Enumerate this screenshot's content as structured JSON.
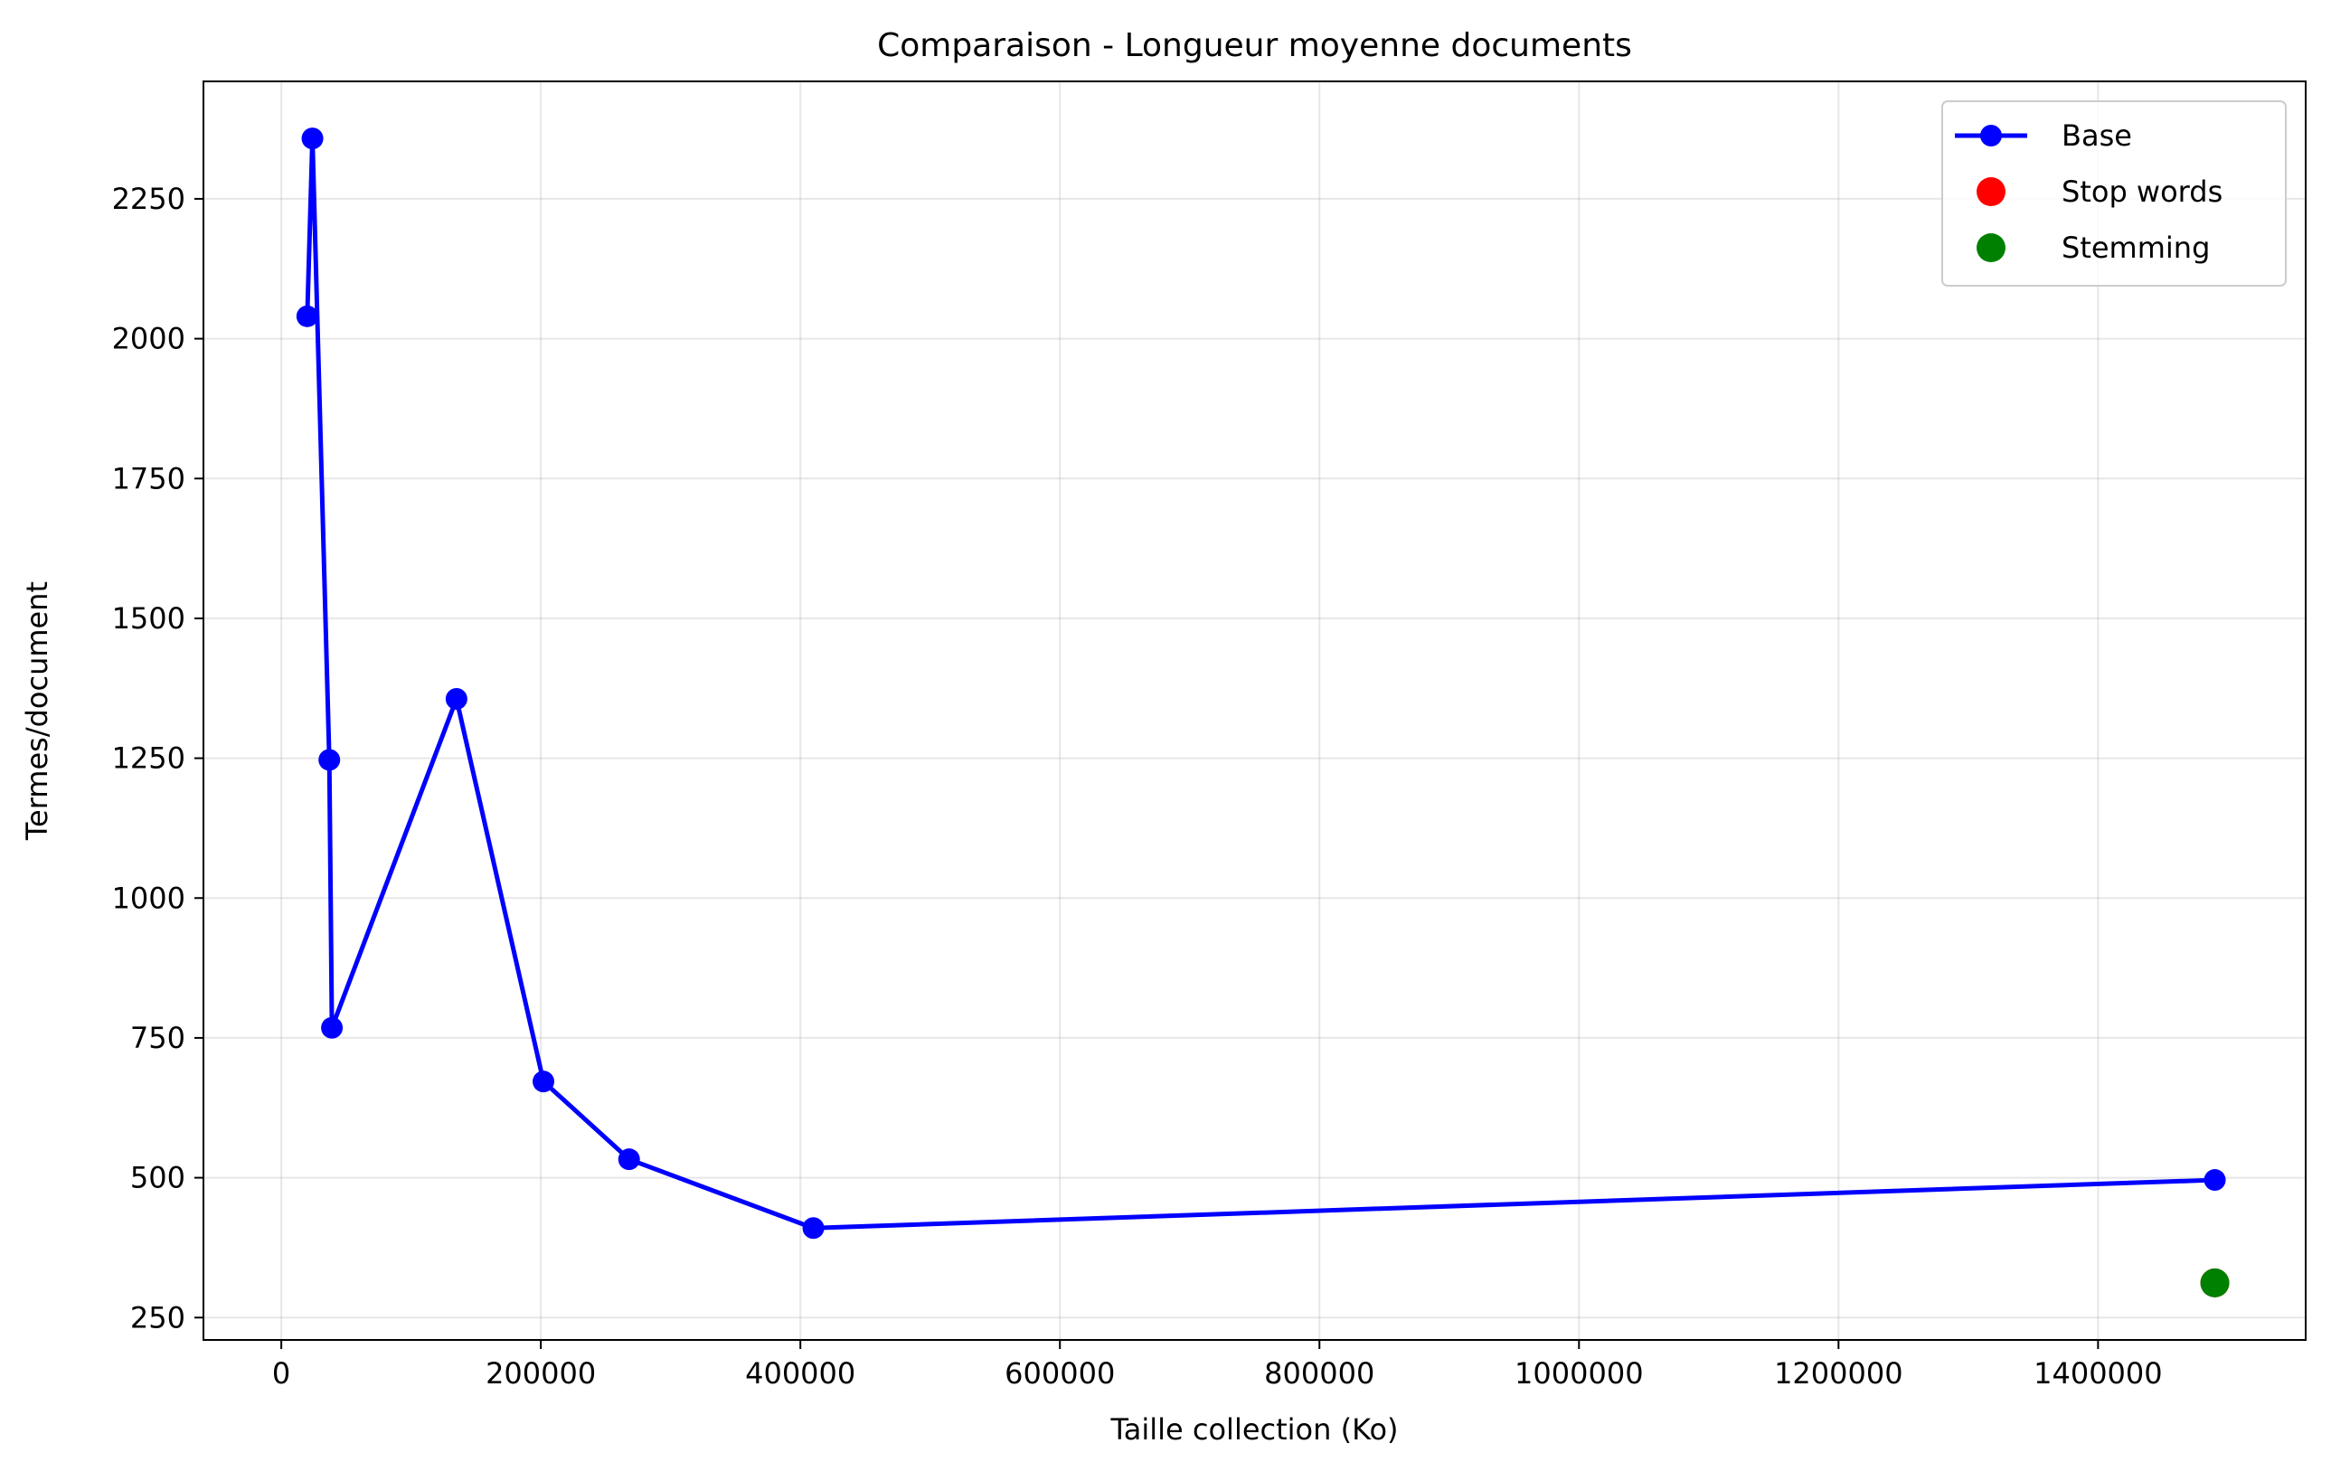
{
  "chart_data": {
    "type": "line",
    "title": "Comparaison - Longueur moyenne documents",
    "xlabel": "Taille collection (Ko)",
    "ylabel": "Termes/document",
    "xlim": [
      -60000,
      1560000
    ],
    "ylim": [
      210,
      2460
    ],
    "xticks": [
      0,
      200000,
      400000,
      600000,
      800000,
      1000000,
      1200000,
      1400000
    ],
    "xtick_labels": [
      "0",
      "200000",
      "400000",
      "600000",
      "800000",
      "1000000",
      "1200000",
      "1400000"
    ],
    "yticks": [
      250,
      500,
      750,
      1000,
      1250,
      1500,
      1750,
      2000,
      2250
    ],
    "ytick_labels": [
      "250",
      "500",
      "750",
      "1000",
      "1250",
      "1500",
      "1750",
      "2000",
      "2250"
    ],
    "grid": true,
    "legend_position": "top-right",
    "series": [
      {
        "name": "Base",
        "color": "#0000ff",
        "style": "line-marker",
        "x": [
          20000,
          24000,
          37000,
          39000,
          135000,
          202000,
          268000,
          410000,
          1490000
        ],
        "y": [
          2040,
          2358,
          1247,
          768,
          1356,
          672,
          533,
          410,
          496
        ]
      },
      {
        "name": "Stop words",
        "color": "#ff0000",
        "style": "marker",
        "x": [
          1490000
        ],
        "y": [
          312
        ]
      },
      {
        "name": "Stemming",
        "color": "#008000",
        "style": "marker",
        "x": [
          1490000
        ],
        "y": [
          312
        ]
      }
    ]
  }
}
